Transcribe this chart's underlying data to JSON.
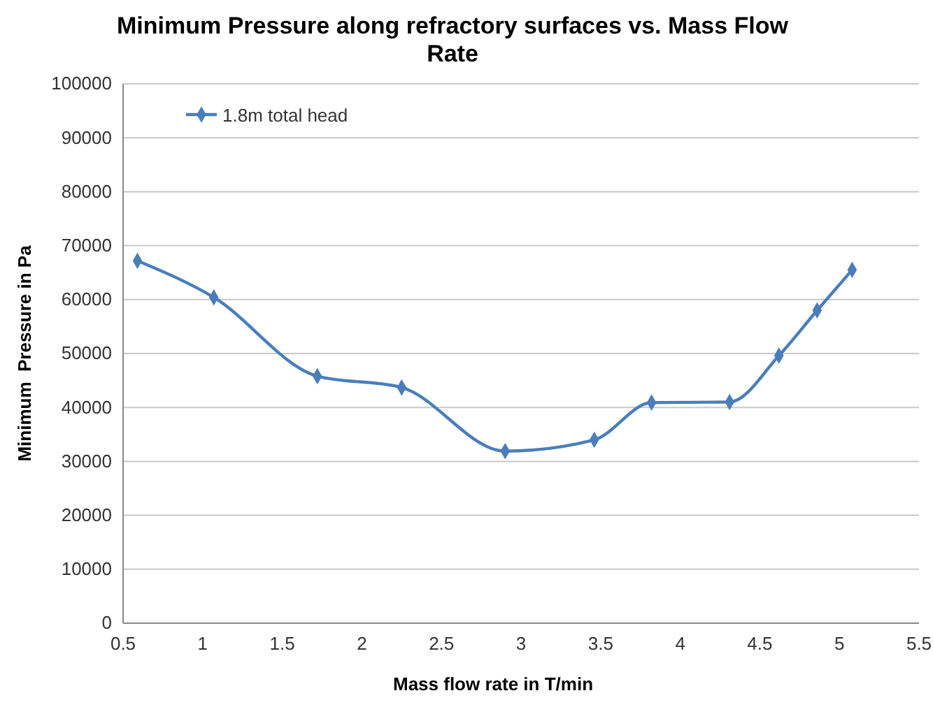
{
  "chart_data": {
    "type": "line",
    "title": "Minimum Pressure along refractory surfaces vs. Mass Flow Rate",
    "xlabel": "Mass flow rate in T/min",
    "ylabel": "Minimum  Pressure in Pa",
    "x": [
      0.59,
      1.07,
      1.72,
      2.25,
      2.9,
      3.46,
      3.82,
      4.31,
      4.62,
      4.86,
      5.08
    ],
    "series": [
      {
        "name": "1.8m total head",
        "color": "#4a7ebb",
        "values": [
          67200,
          60400,
          45800,
          43700,
          31900,
          34000,
          40900,
          41000,
          49600,
          58000,
          65500
        ]
      }
    ],
    "xlim": [
      0.5,
      5.5
    ],
    "xticks": [
      0.5,
      1,
      1.5,
      2,
      2.5,
      3,
      3.5,
      4,
      4.5,
      5,
      5.5
    ],
    "ylim": [
      0,
      100000
    ],
    "yticks": [
      0,
      10000,
      20000,
      30000,
      40000,
      50000,
      60000,
      70000,
      80000,
      90000,
      100000
    ],
    "grid": "y",
    "legend": "top left",
    "marker": "diamond",
    "line_style": "solid"
  }
}
